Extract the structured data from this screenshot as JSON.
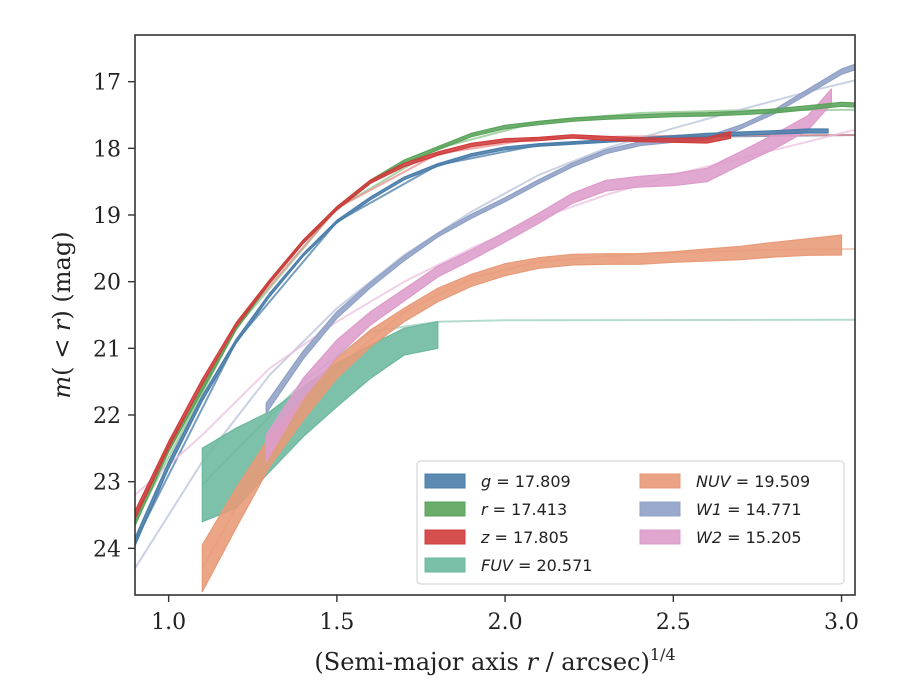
{
  "chart_data": {
    "type": "line",
    "xlabel": "(Semi-major axis r / arcsec)",
    "xlabel_parts": {
      "prefix": "(Semi-major axis ",
      "var": "r",
      "suffix": " / arcsec)",
      "power": "1/4"
    },
    "ylabel_parts": {
      "m": "m",
      "open": "(",
      "lt": " < ",
      "r": "r",
      "close": ")",
      "unit": " (mag)"
    },
    "xlim": [
      0.9,
      3.04
    ],
    "ylim": [
      24.7,
      16.3
    ],
    "y_inverted": true,
    "xticks": [
      1.0,
      1.5,
      2.0,
      2.5,
      3.0
    ],
    "xtick_labels": [
      "1.0",
      "1.5",
      "2.0",
      "2.5",
      "3.0"
    ],
    "yticks": [
      17,
      18,
      19,
      20,
      21,
      22,
      23,
      24
    ],
    "ytick_labels": [
      "17",
      "18",
      "19",
      "20",
      "21",
      "22",
      "23",
      "24"
    ],
    "legend_position": "lower-right",
    "legend_columns": 2,
    "series": [
      {
        "key": "g",
        "name_var": "g",
        "name_italic": true,
        "value": "17.809",
        "color": "#4a7daa",
        "model_color": "#4a7daa",
        "points": [
          [
            0.9,
            23.9
          ],
          [
            1.0,
            22.75
          ],
          [
            1.1,
            21.75
          ],
          [
            1.2,
            20.9
          ],
          [
            1.3,
            20.2
          ],
          [
            1.4,
            19.6
          ],
          [
            1.5,
            19.1
          ],
          [
            1.6,
            18.75
          ],
          [
            1.7,
            18.45
          ],
          [
            1.8,
            18.25
          ],
          [
            1.9,
            18.1
          ],
          [
            2.0,
            18.0
          ],
          [
            2.1,
            17.95
          ],
          [
            2.2,
            17.92
          ],
          [
            2.3,
            17.89
          ],
          [
            2.4,
            17.86
          ],
          [
            2.5,
            17.83
          ],
          [
            2.6,
            17.8
          ],
          [
            2.7,
            17.78
          ],
          [
            2.8,
            17.76
          ],
          [
            2.9,
            17.74
          ],
          [
            2.96,
            17.74
          ]
        ],
        "band_width": [
          0.12,
          0.1,
          0.08,
          0.06,
          0.05,
          0.04,
          0.04,
          0.04,
          0.04,
          0.04,
          0.04,
          0.04,
          0.04,
          0.04,
          0.04,
          0.04,
          0.04,
          0.05,
          0.05,
          0.05,
          0.06,
          0.06
        ],
        "model_points": [
          [
            0.9,
            23.9
          ],
          [
            1.2,
            20.9
          ],
          [
            1.5,
            19.1
          ],
          [
            1.8,
            18.25
          ],
          [
            2.1,
            17.95
          ],
          [
            2.5,
            17.83
          ],
          [
            3.04,
            17.8
          ]
        ]
      },
      {
        "key": "r",
        "name_var": "r",
        "name_italic": true,
        "value": "17.413",
        "color": "#5aa35a",
        "model_color": "#8cc48c",
        "points": [
          [
            0.9,
            23.6
          ],
          [
            1.0,
            22.5
          ],
          [
            1.1,
            21.6
          ],
          [
            1.2,
            20.7
          ],
          [
            1.3,
            20.0
          ],
          [
            1.4,
            19.4
          ],
          [
            1.5,
            18.9
          ],
          [
            1.6,
            18.5
          ],
          [
            1.7,
            18.2
          ],
          [
            1.8,
            18.0
          ],
          [
            1.9,
            17.8
          ],
          [
            2.0,
            17.68
          ],
          [
            2.1,
            17.62
          ],
          [
            2.2,
            17.57
          ],
          [
            2.3,
            17.54
          ],
          [
            2.4,
            17.52
          ],
          [
            2.5,
            17.5
          ],
          [
            2.6,
            17.49
          ],
          [
            2.7,
            17.47
          ],
          [
            2.8,
            17.44
          ],
          [
            2.9,
            17.39
          ],
          [
            3.0,
            17.34
          ],
          [
            3.04,
            17.35
          ]
        ],
        "band_width": [
          0.12,
          0.1,
          0.08,
          0.06,
          0.05,
          0.05,
          0.05,
          0.05,
          0.05,
          0.05,
          0.05,
          0.05,
          0.05,
          0.05,
          0.05,
          0.05,
          0.05,
          0.05,
          0.05,
          0.06,
          0.06,
          0.06,
          0.06
        ],
        "model_points": [
          [
            0.9,
            23.6
          ],
          [
            1.2,
            20.7
          ],
          [
            1.5,
            18.9
          ],
          [
            1.8,
            18.0
          ],
          [
            2.1,
            17.6
          ],
          [
            2.4,
            17.47
          ],
          [
            2.7,
            17.43
          ],
          [
            3.04,
            17.42
          ]
        ]
      },
      {
        "key": "z",
        "name_var": "z",
        "name_italic": true,
        "value": "17.805",
        "color": "#d03c3c",
        "model_color": "#e88c8c",
        "points": [
          [
            0.9,
            23.5
          ],
          [
            1.0,
            22.45
          ],
          [
            1.1,
            21.5
          ],
          [
            1.2,
            20.65
          ],
          [
            1.3,
            20.0
          ],
          [
            1.4,
            19.4
          ],
          [
            1.5,
            18.9
          ],
          [
            1.6,
            18.5
          ],
          [
            1.7,
            18.25
          ],
          [
            1.8,
            18.08
          ],
          [
            1.9,
            17.95
          ],
          [
            2.0,
            17.88
          ],
          [
            2.1,
            17.86
          ],
          [
            2.2,
            17.82
          ],
          [
            2.3,
            17.85
          ],
          [
            2.4,
            17.87
          ],
          [
            2.5,
            17.88
          ],
          [
            2.6,
            17.88
          ],
          [
            2.67,
            17.8
          ]
        ],
        "band_width": [
          0.12,
          0.1,
          0.08,
          0.06,
          0.05,
          0.05,
          0.05,
          0.05,
          0.05,
          0.05,
          0.05,
          0.05,
          0.05,
          0.05,
          0.06,
          0.06,
          0.06,
          0.08,
          0.1
        ],
        "model_points": [
          [
            0.9,
            23.5
          ],
          [
            1.2,
            20.65
          ],
          [
            1.5,
            18.9
          ],
          [
            1.8,
            18.08
          ],
          [
            2.1,
            17.85
          ],
          [
            2.5,
            17.81
          ],
          [
            3.04,
            17.8
          ]
        ]
      },
      {
        "key": "fuv",
        "name_var": "FUV",
        "name_italic": true,
        "value": "20.571",
        "color": "#6bb89e",
        "model_color": "#9ccfbd",
        "points": [
          [
            1.1,
            23.05
          ],
          [
            1.2,
            22.8
          ],
          [
            1.3,
            22.4
          ],
          [
            1.4,
            21.95
          ],
          [
            1.5,
            21.55
          ],
          [
            1.6,
            21.2
          ],
          [
            1.7,
            20.9
          ],
          [
            1.8,
            20.8
          ]
        ],
        "band_width": [
          1.1,
          1.2,
          0.9,
          0.75,
          0.65,
          0.5,
          0.4,
          0.4
        ],
        "model_points": [
          [
            1.1,
            23.05
          ],
          [
            1.4,
            21.5
          ],
          [
            1.6,
            20.75
          ],
          [
            1.8,
            20.6
          ],
          [
            2.0,
            20.58
          ],
          [
            3.04,
            20.57
          ]
        ]
      },
      {
        "key": "nuv",
        "name_var": "NUV",
        "name_italic": true,
        "value": "19.509",
        "color": "#e89a78",
        "model_color": "#f0bda5",
        "points": [
          [
            1.1,
            24.3
          ],
          [
            1.2,
            23.4
          ],
          [
            1.3,
            22.55
          ],
          [
            1.4,
            21.9
          ],
          [
            1.5,
            21.3
          ],
          [
            1.6,
            20.85
          ],
          [
            1.7,
            20.5
          ],
          [
            1.8,
            20.2
          ],
          [
            1.9,
            19.98
          ],
          [
            2.0,
            19.82
          ],
          [
            2.1,
            19.72
          ],
          [
            2.2,
            19.67
          ],
          [
            2.3,
            19.66
          ],
          [
            2.4,
            19.66
          ],
          [
            2.5,
            19.63
          ],
          [
            2.6,
            19.6
          ],
          [
            2.7,
            19.57
          ],
          [
            2.8,
            19.52
          ],
          [
            2.9,
            19.48
          ],
          [
            3.0,
            19.45
          ]
        ],
        "band_width": [
          0.7,
          0.6,
          0.45,
          0.35,
          0.3,
          0.25,
          0.2,
          0.2,
          0.18,
          0.18,
          0.16,
          0.16,
          0.16,
          0.16,
          0.16,
          0.18,
          0.2,
          0.22,
          0.25,
          0.3
        ],
        "model_points": [
          [
            1.1,
            24.3
          ],
          [
            1.3,
            22.5
          ],
          [
            1.5,
            21.3
          ],
          [
            1.7,
            20.45
          ],
          [
            1.9,
            19.95
          ],
          [
            2.1,
            19.7
          ],
          [
            2.4,
            19.58
          ],
          [
            2.8,
            19.52
          ],
          [
            3.04,
            19.51
          ]
        ]
      },
      {
        "key": "w1",
        "name_var": "W1",
        "name_italic": true,
        "value": "14.771",
        "color": "#8fa1c6",
        "model_color": "#b8c2da",
        "points": [
          [
            1.29,
            21.9
          ],
          [
            1.4,
            21.1
          ],
          [
            1.5,
            20.5
          ],
          [
            1.6,
            20.05
          ],
          [
            1.7,
            19.65
          ],
          [
            1.8,
            19.3
          ],
          [
            1.9,
            19.02
          ],
          [
            2.0,
            18.77
          ],
          [
            2.1,
            18.5
          ],
          [
            2.2,
            18.25
          ],
          [
            2.3,
            18.05
          ],
          [
            2.4,
            17.93
          ],
          [
            2.5,
            17.88
          ],
          [
            2.6,
            17.85
          ],
          [
            2.7,
            17.68
          ],
          [
            2.8,
            17.45
          ],
          [
            2.9,
            17.15
          ],
          [
            3.0,
            16.85
          ],
          [
            3.04,
            16.78
          ]
        ],
        "band_width": [
          0.15,
          0.12,
          0.1,
          0.08,
          0.07,
          0.06,
          0.06,
          0.06,
          0.06,
          0.06,
          0.06,
          0.06,
          0.06,
          0.06,
          0.06,
          0.06,
          0.07,
          0.08,
          0.08
        ],
        "model_points": [
          [
            0.9,
            24.3
          ],
          [
            1.1,
            22.7
          ],
          [
            1.3,
            21.4
          ],
          [
            1.5,
            20.4
          ],
          [
            1.7,
            19.6
          ],
          [
            1.9,
            18.95
          ],
          [
            2.1,
            18.4
          ],
          [
            2.3,
            18.0
          ],
          [
            2.5,
            17.7
          ],
          [
            2.7,
            17.42
          ],
          [
            2.9,
            17.15
          ],
          [
            3.04,
            16.98
          ]
        ]
      },
      {
        "key": "w2",
        "name_var": "W2",
        "name_italic": true,
        "value": "15.205",
        "color": "#dd9ccb",
        "model_color": "#ecc0df",
        "points": [
          [
            1.29,
            22.5
          ],
          [
            1.4,
            21.6
          ],
          [
            1.5,
            21.0
          ],
          [
            1.6,
            20.55
          ],
          [
            1.7,
            20.2
          ],
          [
            1.8,
            19.85
          ],
          [
            1.9,
            19.6
          ],
          [
            2.0,
            19.33
          ],
          [
            2.1,
            19.05
          ],
          [
            2.2,
            18.75
          ],
          [
            2.3,
            18.56
          ],
          [
            2.4,
            18.5
          ],
          [
            2.5,
            18.47
          ],
          [
            2.6,
            18.4
          ],
          [
            2.7,
            18.15
          ],
          [
            2.8,
            17.9
          ],
          [
            2.9,
            17.62
          ],
          [
            2.97,
            17.22
          ]
        ],
        "band_width": [
          0.4,
          0.3,
          0.25,
          0.2,
          0.18,
          0.16,
          0.15,
          0.15,
          0.15,
          0.15,
          0.16,
          0.16,
          0.18,
          0.2,
          0.2,
          0.22,
          0.22,
          0.22
        ],
        "model_points": [
          [
            0.9,
            23.2
          ],
          [
            1.1,
            22.3
          ],
          [
            1.3,
            21.3
          ],
          [
            1.5,
            20.6
          ],
          [
            1.7,
            20.0
          ],
          [
            1.9,
            19.5
          ],
          [
            2.1,
            19.05
          ],
          [
            2.3,
            18.7
          ],
          [
            2.5,
            18.4
          ],
          [
            2.7,
            18.15
          ],
          [
            2.9,
            17.9
          ],
          [
            3.04,
            17.72
          ]
        ]
      }
    ],
    "legend_order": [
      "g",
      "r",
      "z",
      "fuv",
      "nuv",
      "w1",
      "w2"
    ]
  }
}
